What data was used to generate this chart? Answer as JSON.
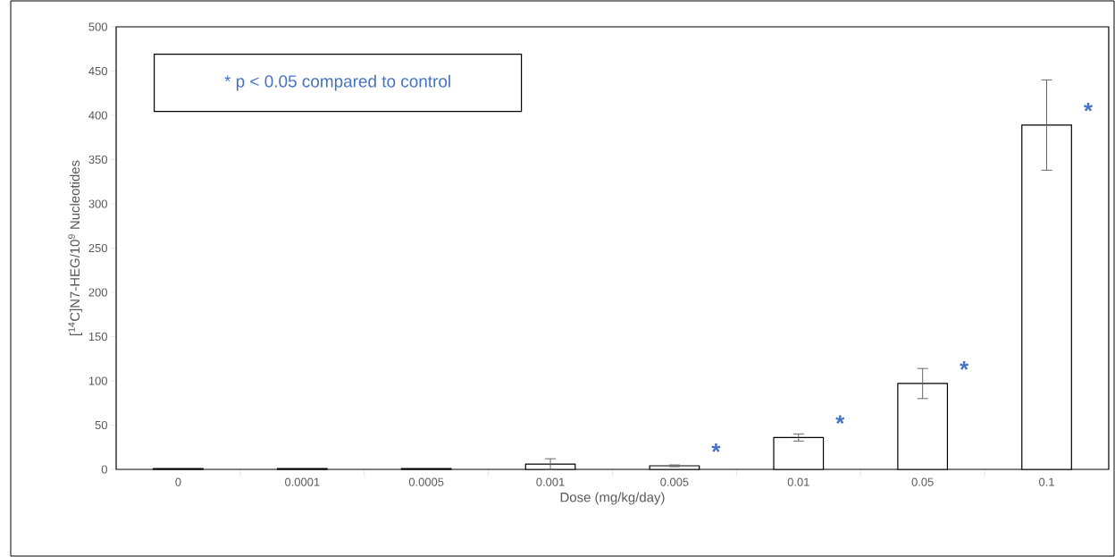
{
  "chart_data": {
    "type": "bar",
    "xlabel": "Dose (mg/kg/day)",
    "ylabel": "[$^{14}$C]N7-HEG/10$^{9}$ Nucleotides",
    "categories": [
      "0",
      "0.0001",
      "0.0005",
      "0.001",
      "0.005",
      "0.01",
      "0.05",
      "0.1"
    ],
    "values": [
      1,
      1,
      1,
      6,
      4,
      36,
      97,
      389
    ],
    "errors": [
      null,
      null,
      null,
      6,
      1,
      4,
      17,
      51
    ],
    "color": "#ffffff",
    "ylim": [
      0,
      500
    ],
    "yticks": [
      0,
      50,
      100,
      150,
      200,
      250,
      300,
      350,
      400,
      450,
      500
    ],
    "annotations": [
      "* p < 0.05 compared to control",
      {
        "text": "*",
        "x": "0.005",
        "y": 4
      },
      {
        "text": "*",
        "x": "0.01",
        "y": 36
      },
      {
        "text": "*",
        "x": "0.05",
        "y": 97
      },
      {
        "text": "*",
        "x": "0.1",
        "y": 389
      }
    ]
  }
}
